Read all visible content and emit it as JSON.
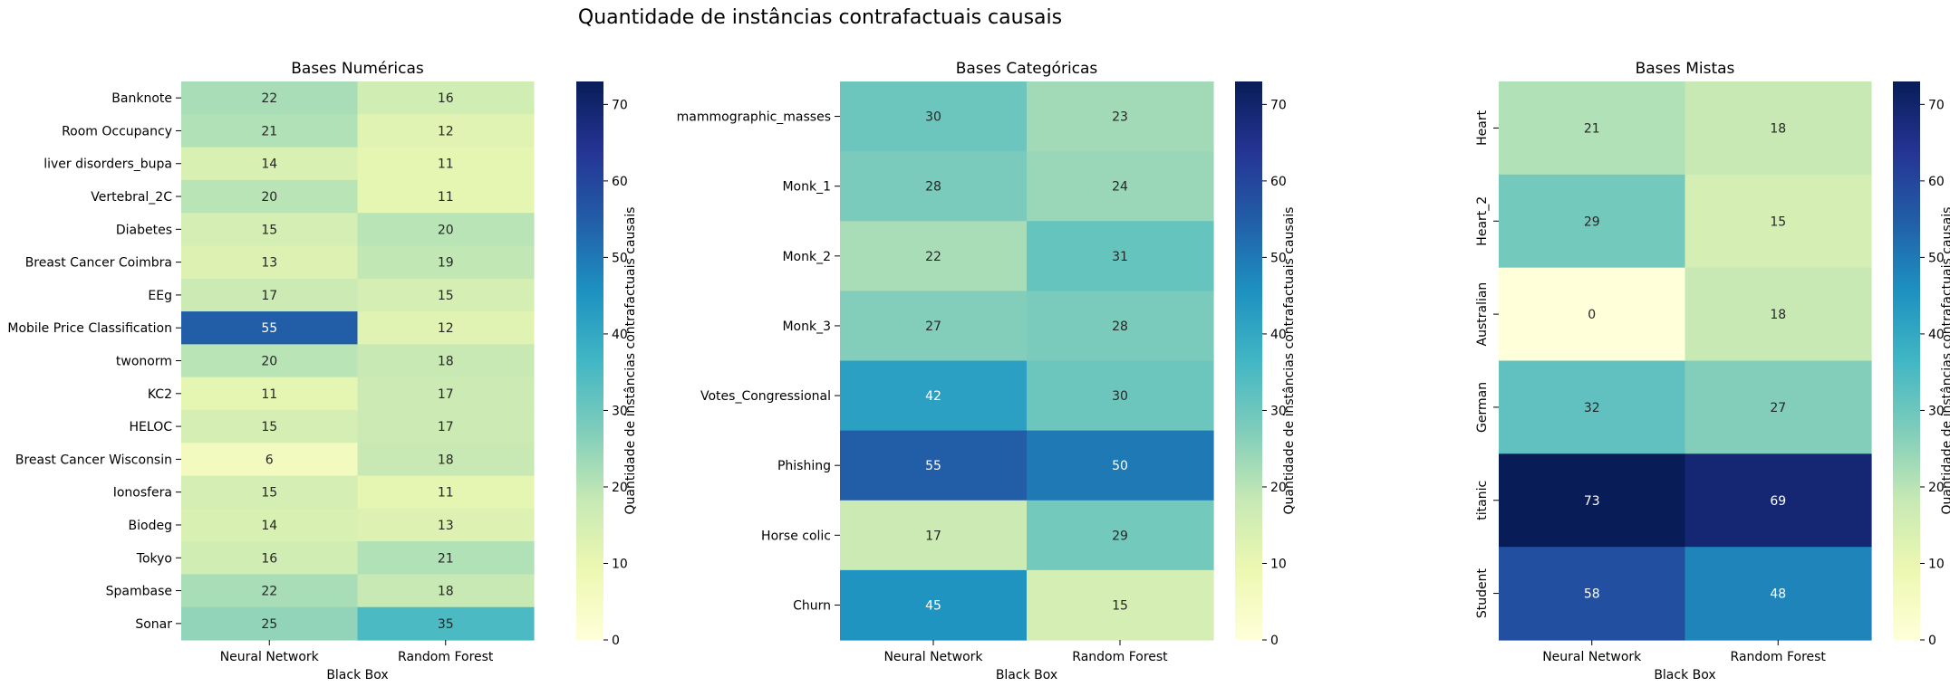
{
  "figure": {
    "title": "Quantidade de instâncias contrafactuais causais"
  },
  "colormap": {
    "name": "YlGnBu",
    "stops": [
      "#ffffd9",
      "#edf8b1",
      "#c7e9b4",
      "#7fcdbb",
      "#41b6c4",
      "#1d91c0",
      "#225ea8",
      "#253494",
      "#081d58"
    ]
  },
  "chart_data": [
    {
      "type": "heatmap",
      "title": "Bases Numéricas",
      "xlabel": "Black Box",
      "ylabel": "",
      "x_categories": [
        "Neural Network",
        "Random Forest"
      ],
      "y_categories": [
        "Banknote",
        "Room Occupancy",
        "liver disorders_bupa",
        "Vertebral_2C",
        "Diabetes",
        "Breast Cancer Coimbra",
        "EEg",
        "Mobile Price Classification",
        "twonorm",
        "KC2",
        "HELOC",
        "Breast Cancer Wisconsin",
        "Ionosfera",
        "Biodeg",
        "Tokyo",
        "Spambase",
        "Sonar"
      ],
      "y_label_rotation": "horizontal",
      "values": [
        [
          22,
          16
        ],
        [
          21,
          12
        ],
        [
          14,
          11
        ],
        [
          20,
          11
        ],
        [
          15,
          20
        ],
        [
          13,
          19
        ],
        [
          17,
          15
        ],
        [
          55,
          12
        ],
        [
          20,
          18
        ],
        [
          11,
          17
        ],
        [
          15,
          17
        ],
        [
          6,
          18
        ],
        [
          15,
          11
        ],
        [
          14,
          13
        ],
        [
          16,
          21
        ],
        [
          22,
          18
        ],
        [
          25,
          35
        ]
      ],
      "colorbar": {
        "label": "Quantidade de instâncias contrafactuais causais",
        "vmin": 0,
        "vmax": 73,
        "ticks": [
          0,
          10,
          20,
          30,
          40,
          50,
          60,
          70
        ]
      }
    },
    {
      "type": "heatmap",
      "title": "Bases Categóricas",
      "xlabel": "Black Box",
      "ylabel": "",
      "x_categories": [
        "Neural Network",
        "Random Forest"
      ],
      "y_categories": [
        "mammographic_masses",
        "Monk_1",
        "Monk_2",
        "Monk_3",
        "Votes_Congressional",
        "Phishing",
        "Horse colic",
        "Churn"
      ],
      "y_label_rotation": "horizontal",
      "values": [
        [
          30,
          23
        ],
        [
          28,
          24
        ],
        [
          22,
          31
        ],
        [
          27,
          28
        ],
        [
          42,
          30
        ],
        [
          55,
          50
        ],
        [
          17,
          29
        ],
        [
          45,
          15
        ]
      ],
      "colorbar": {
        "label": "Quantidade de instâncias contrafactuais causais",
        "vmin": 0,
        "vmax": 73,
        "ticks": [
          0,
          10,
          20,
          30,
          40,
          50,
          60,
          70
        ]
      }
    },
    {
      "type": "heatmap",
      "title": "Bases Mistas",
      "xlabel": "Black Box",
      "ylabel": "",
      "x_categories": [
        "Neural Network",
        "Random Forest"
      ],
      "y_categories": [
        "Heart",
        "Heart_2",
        "Australian",
        "German",
        "titanic",
        "Student"
      ],
      "y_label_rotation": "vertical",
      "values": [
        [
          21,
          18
        ],
        [
          29,
          15
        ],
        [
          0,
          18
        ],
        [
          32,
          27
        ],
        [
          73,
          69
        ],
        [
          58,
          48
        ]
      ],
      "colorbar": {
        "label": "Quantidade de instâncias contrafactuais causais",
        "vmin": 0,
        "vmax": 73,
        "ticks": [
          0,
          10,
          20,
          30,
          40,
          50,
          60,
          70
        ]
      }
    }
  ]
}
